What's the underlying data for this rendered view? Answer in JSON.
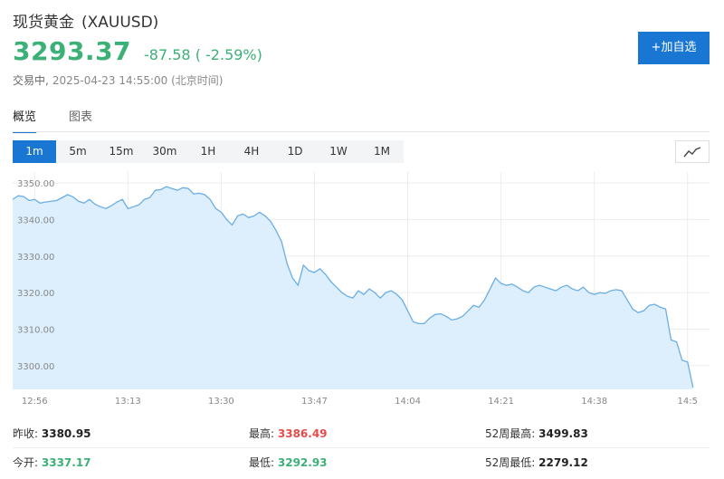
{
  "header": {
    "name": "现货黄金",
    "symbol": "(XAUUSD)",
    "price": "3293.37",
    "change": "-87.58 ( -2.59%)",
    "status": "交易中,",
    "datetime": "2025-04-23 14:55:00 (北京时间)",
    "add_button": "+加自选"
  },
  "tabs": [
    {
      "label": "概览",
      "active": true
    },
    {
      "label": "图表",
      "active": false
    }
  ],
  "periods": [
    {
      "label": "1m",
      "active": true
    },
    {
      "label": "5m",
      "active": false
    },
    {
      "label": "15m",
      "active": false
    },
    {
      "label": "30m",
      "active": false
    },
    {
      "label": "1H",
      "active": false
    },
    {
      "label": "4H",
      "active": false
    },
    {
      "label": "1D",
      "active": false
    },
    {
      "label": "1W",
      "active": false
    },
    {
      "label": "1M",
      "active": false
    }
  ],
  "chart_type_icon": "line-chart-icon",
  "colors": {
    "line": "#6aaee6",
    "fill": "#ddeefc",
    "accent": "#1976d2",
    "down": "#3bb077",
    "up": "#e54b4b"
  },
  "chart_data": {
    "type": "area",
    "grid": true,
    "ylim": [
      3293.5,
      3353.0
    ],
    "yticks": [
      "3350.00",
      "3340.00",
      "3330.00",
      "3320.00",
      "3310.00",
      "3300.00"
    ],
    "ytick_values": [
      3350,
      3340,
      3330,
      3320,
      3310,
      3300
    ],
    "xticks": [
      "12:56",
      "13:13",
      "13:30",
      "13:47",
      "14:04",
      "14:21",
      "14:38",
      "14:5"
    ],
    "xtick_index": [
      4,
      21,
      38,
      55,
      72,
      89,
      106,
      123
    ],
    "xmax": 127,
    "values": [
      3345.5,
      3346.5,
      3346.3,
      3345.2,
      3345.5,
      3344.5,
      3344.8,
      3345.0,
      3345.2,
      3346.0,
      3346.8,
      3346.2,
      3345.0,
      3344.5,
      3345.5,
      3344.2,
      3343.5,
      3343.0,
      3343.8,
      3344.8,
      3345.5,
      3343.0,
      3343.5,
      3344.0,
      3345.5,
      3346.0,
      3348.0,
      3348.2,
      3349.0,
      3348.5,
      3348.0,
      3348.7,
      3348.5,
      3347.0,
      3347.2,
      3346.8,
      3345.5,
      3343.0,
      3342.0,
      3340.0,
      3338.5,
      3341.0,
      3341.5,
      3340.5,
      3341.0,
      3342.0,
      3341.0,
      3339.5,
      3337.0,
      3334.0,
      3328.0,
      3324.0,
      3322.0,
      3327.5,
      3326.0,
      3325.5,
      3326.5,
      3325.0,
      3323.0,
      3321.5,
      3320.0,
      3319.0,
      3318.5,
      3320.5,
      3319.5,
      3321.0,
      3320.0,
      3318.5,
      3320.0,
      3320.5,
      3319.5,
      3318.0,
      3315.0,
      3312.0,
      3311.5,
      3311.5,
      3313.0,
      3314.0,
      3314.2,
      3313.5,
      3312.5,
      3312.8,
      3313.5,
      3315.0,
      3316.5,
      3316.0,
      3318.0,
      3321.0,
      3324.0,
      3322.5,
      3322.0,
      3322.3,
      3321.5,
      3320.5,
      3320.0,
      3321.5,
      3322.0,
      3321.5,
      3321.0,
      3320.5,
      3321.5,
      3322.0,
      3321.0,
      3320.5,
      3321.5,
      3320.0,
      3319.5,
      3320.0,
      3319.8,
      3320.5,
      3320.8,
      3320.5,
      3318.0,
      3315.5,
      3314.5,
      3315.0,
      3316.5,
      3316.8,
      3316.0,
      3315.5,
      3307.0,
      3306.5,
      3301.5,
      3301.0,
      3294.0
    ]
  },
  "stats": [
    [
      {
        "label": "昨收:",
        "value": "3380.95",
        "color": ""
      },
      {
        "label": "最高:",
        "value": "3386.49",
        "color": "red"
      },
      {
        "label": "52周最高:",
        "value": "3499.83",
        "color": ""
      }
    ],
    [
      {
        "label": "今开:",
        "value": "3337.17",
        "color": "green"
      },
      {
        "label": "最低:",
        "value": "3292.93",
        "color": "green"
      },
      {
        "label": "52周最低:",
        "value": "2279.12",
        "color": ""
      }
    ]
  ]
}
